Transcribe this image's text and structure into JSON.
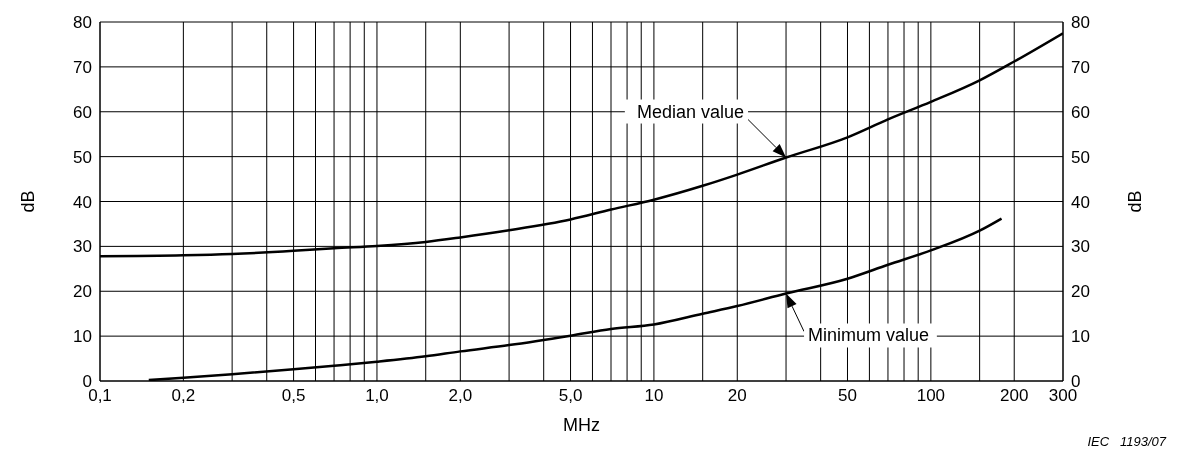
{
  "chart_data": {
    "type": "line",
    "xlabel": "MHz",
    "ylabel": "dB",
    "y2label": "dB",
    "log": "x",
    "grid": true,
    "xlim": [
      0.1,
      300
    ],
    "ylim": [
      0,
      80
    ],
    "y2lim": [
      0,
      80
    ],
    "xticks": [
      {
        "value": 0.1,
        "label": "0,1"
      },
      {
        "value": 0.2,
        "label": "0,2"
      },
      {
        "value": 0.3,
        "label": null
      },
      {
        "value": 0.4,
        "label": null
      },
      {
        "value": 0.5,
        "label": "0,5"
      },
      {
        "value": 0.6,
        "label": null
      },
      {
        "value": 0.7,
        "label": null
      },
      {
        "value": 0.8,
        "label": null
      },
      {
        "value": 0.9,
        "label": null
      },
      {
        "value": 1,
        "label": "1,0"
      },
      {
        "value": 1.5,
        "label": null
      },
      {
        "value": 2,
        "label": "2,0"
      },
      {
        "value": 3,
        "label": null
      },
      {
        "value": 4,
        "label": null
      },
      {
        "value": 5,
        "label": "5,0"
      },
      {
        "value": 6,
        "label": null
      },
      {
        "value": 7,
        "label": null
      },
      {
        "value": 8,
        "label": null
      },
      {
        "value": 9,
        "label": null
      },
      {
        "value": 10,
        "label": "10"
      },
      {
        "value": 15,
        "label": null
      },
      {
        "value": 20,
        "label": "20"
      },
      {
        "value": 30,
        "label": null
      },
      {
        "value": 40,
        "label": null
      },
      {
        "value": 50,
        "label": "50"
      },
      {
        "value": 60,
        "label": null
      },
      {
        "value": 70,
        "label": null
      },
      {
        "value": 80,
        "label": null
      },
      {
        "value": 90,
        "label": null
      },
      {
        "value": 100,
        "label": "100"
      },
      {
        "value": 150,
        "label": null
      },
      {
        "value": 200,
        "label": "200"
      },
      {
        "value": 300,
        "label": "300"
      }
    ],
    "yticks": [
      0,
      10,
      20,
      30,
      40,
      50,
      60,
      70,
      80
    ],
    "y2ticks": [
      0,
      10,
      20,
      30,
      40,
      50,
      60,
      70,
      80
    ],
    "series": [
      {
        "name": "Median value",
        "color": "#000000",
        "x": [
          0.1,
          0.2,
          0.3,
          0.5,
          0.7,
          1,
          1.5,
          2,
          3,
          5,
          7,
          10,
          15,
          20,
          30,
          50,
          70,
          100,
          150,
          200,
          300
        ],
        "values": [
          27.8,
          28,
          28.3,
          29,
          29.6,
          30.1,
          31,
          32,
          33.6,
          36,
          38.2,
          40.4,
          43.5,
          46,
          49.8,
          54.3,
          58.3,
          62.2,
          67,
          71.2,
          77.5
        ]
      },
      {
        "name": "Minimum value",
        "color": "#000000",
        "x": [
          0.15,
          0.2,
          0.3,
          0.5,
          0.7,
          1,
          1.5,
          2,
          3,
          5,
          7,
          10,
          15,
          20,
          30,
          50,
          70,
          100,
          150,
          180
        ],
        "values": [
          0.2,
          0.7,
          1.5,
          2.6,
          3.4,
          4.3,
          5.5,
          6.6,
          8,
          10.1,
          11.6,
          12.6,
          15,
          16.7,
          19.5,
          22.8,
          25.9,
          29.1,
          33.5,
          36.2
        ]
      }
    ],
    "annotations": [
      "IEC   1193/07"
    ]
  }
}
